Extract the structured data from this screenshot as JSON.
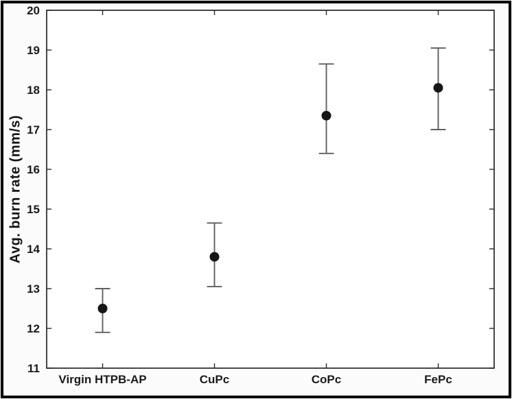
{
  "figure": {
    "background": "#fbfbfb",
    "frame_color": "#000000",
    "plot_background": "#ffffff"
  },
  "chart_data": {
    "type": "scatter",
    "title": "",
    "xlabel": "",
    "ylabel": "Avg. burn rate (mm/s)",
    "categories": [
      "Virgin HTPB-AP",
      "CuPc",
      "CoPc",
      "FePc"
    ],
    "series": [
      {
        "name": "Avg. burn rate",
        "values": [
          12.5,
          13.8,
          17.35,
          18.05
        ],
        "error_low": [
          11.9,
          13.05,
          16.4,
          17.0
        ],
        "error_high": [
          13.0,
          14.65,
          18.65,
          19.05
        ]
      }
    ],
    "ylim": [
      11,
      20
    ],
    "yticks": [
      11,
      12,
      13,
      14,
      15,
      16,
      17,
      18,
      19,
      20
    ],
    "grid": false,
    "legend": "none",
    "marker": "filled-circle",
    "marker_color": "#161616",
    "error_bar_color": "#5f5f5f",
    "axis_color": "#262626",
    "tick_label_color": "#1a1a1a"
  }
}
